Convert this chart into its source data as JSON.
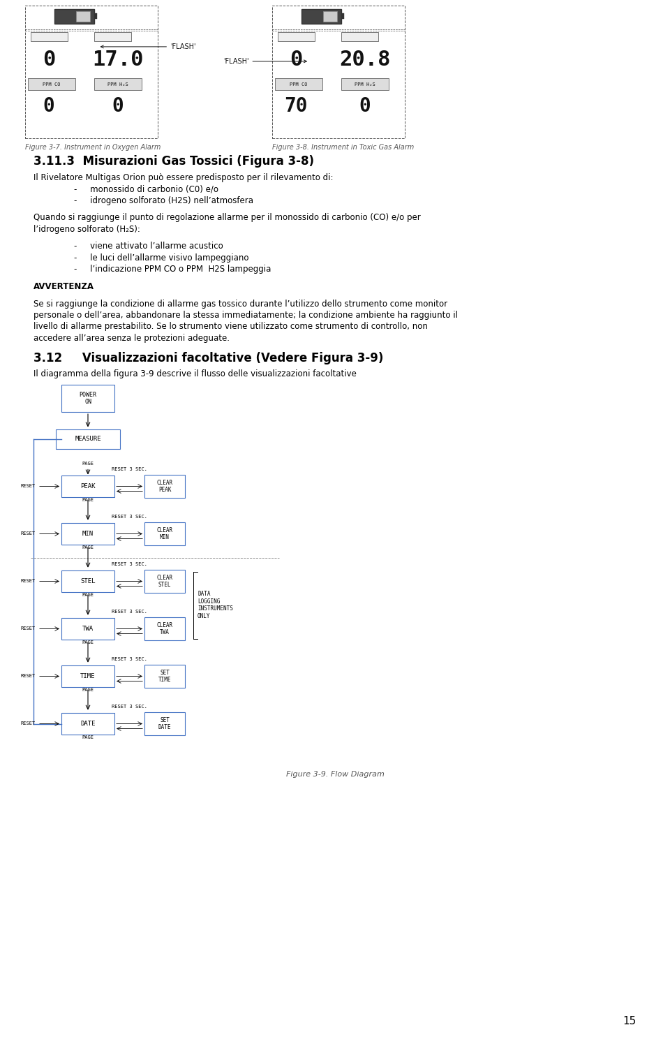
{
  "page_number": "15",
  "bg_color": "#ffffff",
  "fig_width": 9.6,
  "fig_height": 14.88,
  "section_title": "3.11.3  Misurazioni Gas Tossici (Figura 3-8)",
  "fig37_caption": "Figure 3-7. Instrument in Oxygen Alarm",
  "fig38_caption": "Figure 3-8. Instrument in Toxic Gas Alarm",
  "flash_left": "'FLASH'",
  "flash_right": "'FLASH'",
  "body_lines": [
    {
      "text": "Il Rivelatore Multigas Orion può essere predisposto per il rilevamento di:",
      "weight": "normal",
      "indent": 0.0
    },
    {
      "text": "-     monossido di carbonio (C0) e/o",
      "weight": "normal",
      "indent": 0.06
    },
    {
      "text": "-     idrogeno solforato (H2S) nell’atmosfera",
      "weight": "normal",
      "indent": 0.06
    },
    {
      "text": "",
      "weight": "normal",
      "indent": 0.0
    },
    {
      "text": "Quando si raggiunge il punto di regolazione allarme per il monossido di carbonio (CO) e/o per l’idrogeno solforato (H₂S):",
      "weight": "normal",
      "indent": 0.0
    },
    {
      "text": "",
      "weight": "normal",
      "indent": 0.0
    },
    {
      "text": "-     viene attivato l’allarme acustico",
      "weight": "normal",
      "indent": 0.06
    },
    {
      "text": "-     le luci dell’allarme visivo lampeggiano",
      "weight": "normal",
      "indent": 0.06
    },
    {
      "text": "-     l’indicazione PPM CO o PPM  H2S lampeggia",
      "weight": "normal",
      "indent": 0.06
    },
    {
      "text": "",
      "weight": "normal",
      "indent": 0.0
    },
    {
      "text": "AVVERTENZA",
      "weight": "bold",
      "indent": 0.0
    },
    {
      "text": "",
      "weight": "normal",
      "indent": 0.0
    },
    {
      "text": "Se si raggiunge la condizione di allarme gas tossico durante l’utilizzo dello strumento come monitor personale o dell’area, abbandonare la stessa immediatamente; la condizione ambiente ha raggiunto il livello di allarme prestabilito. Se lo strumento viene utilizzato come strumento di controllo, non accedere all’area senza le protezioni adeguate.",
      "weight": "normal",
      "indent": 0.0
    }
  ],
  "section2_title": "3.12     Visualizzazioni facoltative (Vedere Figura 3-9)",
  "section2_body": "Il diagramma della figura 3-9 descrive il flusso delle visualizzazioni facoltative",
  "fig39_caption": "Figure 3-9. Flow Diagram",
  "flow_color": "#4472c4",
  "text_color": "#000000"
}
